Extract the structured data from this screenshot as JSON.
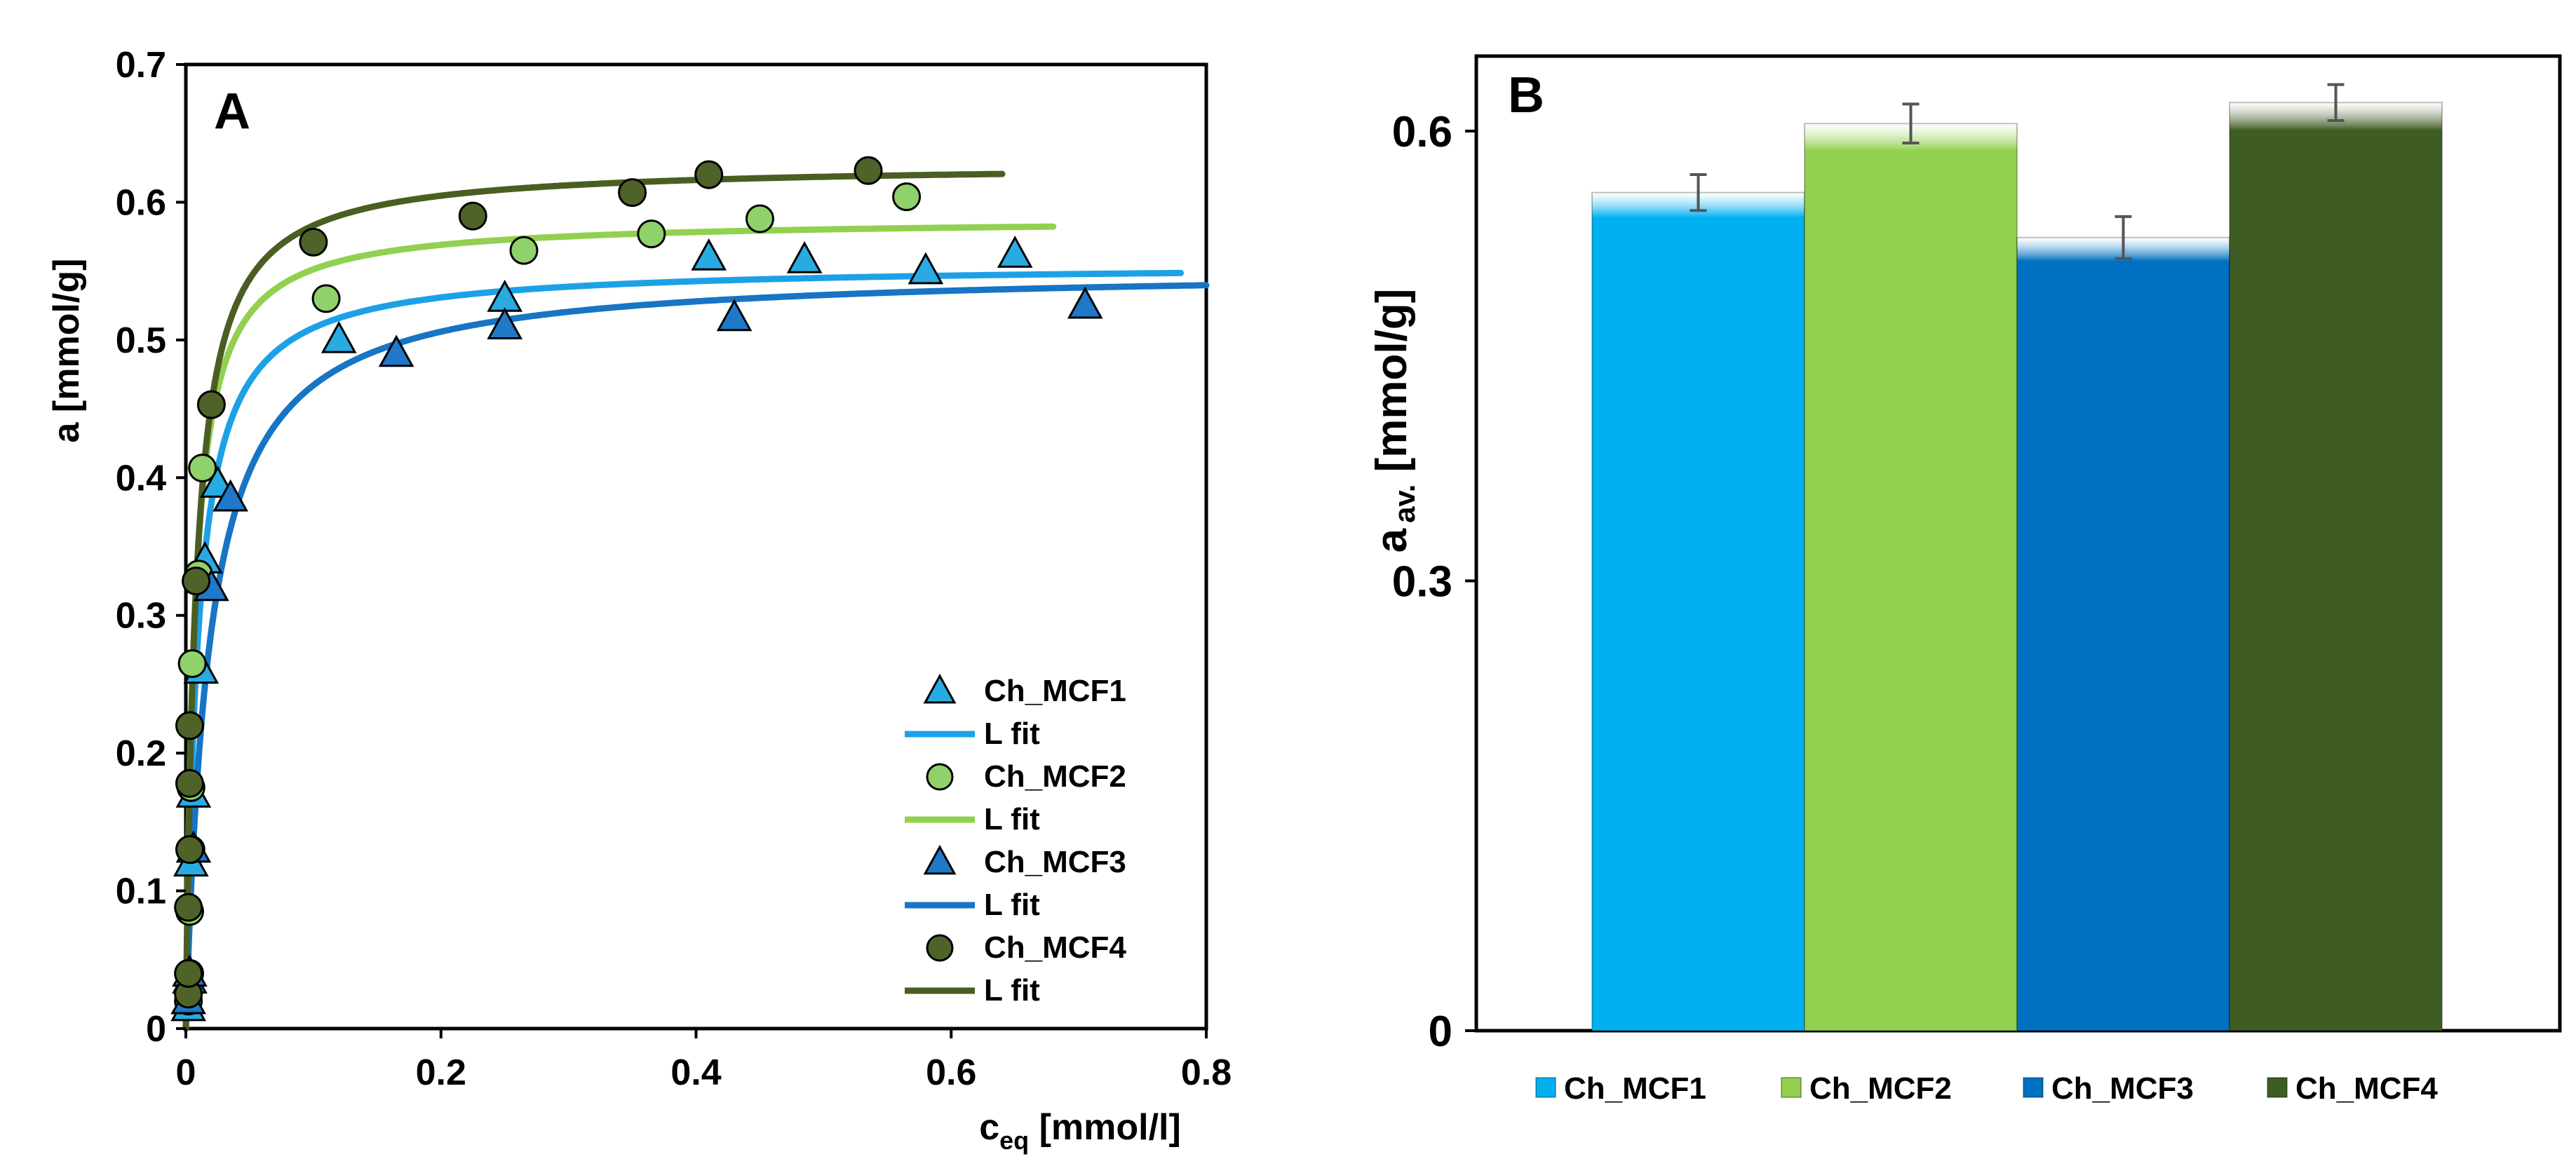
{
  "chart_data": [
    {
      "panel_label": "A",
      "type": "scatter",
      "xlabel_main": "c",
      "xlabel_sub": "eq",
      "xlabel_unit": " [mmol/l]",
      "ylabel": "a [mmol/g]",
      "xlim": [
        0,
        0.8
      ],
      "ylim": [
        0,
        0.7
      ],
      "xticks": [
        0,
        0.2,
        0.4,
        0.6,
        0.8
      ],
      "yticks": [
        0,
        0.1,
        0.2,
        0.3,
        0.4,
        0.5,
        0.6,
        0.7
      ],
      "xtick_labels": [
        "0",
        "0.2",
        "0.4",
        "0.6",
        "0.8"
      ],
      "ytick_labels": [
        "0",
        "0.1",
        "0.2",
        "0.3",
        "0.4",
        "0.5",
        "0.6",
        "0.7"
      ],
      "grid": false,
      "legend_position": "bottom-right",
      "series": [
        {
          "name": "Ch_MCF1",
          "marker": "triangle",
          "color": "#29ABE2",
          "fit_color": "#1DA1E6",
          "fit_name": "L fit",
          "points": [
            [
              0.002,
              0.015
            ],
            [
              0.003,
              0.035
            ],
            [
              0.004,
              0.12
            ],
            [
              0.006,
              0.17
            ],
            [
              0.012,
              0.26
            ],
            [
              0.015,
              0.34
            ],
            [
              0.025,
              0.395
            ],
            [
              0.12,
              0.5
            ],
            [
              0.25,
              0.53
            ],
            [
              0.41,
              0.56
            ],
            [
              0.485,
              0.558
            ],
            [
              0.58,
              0.55
            ],
            [
              0.65,
              0.562
            ]
          ],
          "fit": {
            "qmax": 0.555,
            "K": 110,
            "xmax": 0.78
          }
        },
        {
          "name": "Ch_MCF2",
          "marker": "circle",
          "color": "#8FD16A",
          "fit_color": "#92D050",
          "fit_name": "L fit",
          "points": [
            [
              0.002,
              0.02
            ],
            [
              0.003,
              0.04
            ],
            [
              0.003,
              0.085
            ],
            [
              0.004,
              0.13
            ],
            [
              0.004,
              0.175
            ],
            [
              0.005,
              0.265
            ],
            [
              0.01,
              0.33
            ],
            [
              0.013,
              0.407
            ],
            [
              0.11,
              0.53
            ],
            [
              0.265,
              0.565
            ],
            [
              0.365,
              0.577
            ],
            [
              0.45,
              0.588
            ],
            [
              0.565,
              0.604
            ]
          ],
          "fit": {
            "qmax": 0.588,
            "K": 150,
            "xmax": 0.68
          }
        },
        {
          "name": "Ch_MCF3",
          "marker": "triangle",
          "color": "#1F78C8",
          "fit_color": "#1874C4",
          "fit_name": "L fit",
          "points": [
            [
              0.002,
              0.02
            ],
            [
              0.003,
              0.04
            ],
            [
              0.006,
              0.13
            ],
            [
              0.02,
              0.32
            ],
            [
              0.035,
              0.385
            ],
            [
              0.165,
              0.49
            ],
            [
              0.25,
              0.51
            ],
            [
              0.43,
              0.516
            ],
            [
              0.705,
              0.525
            ]
          ],
          "fit": {
            "qmax": 0.552,
            "K": 55,
            "xmax": 0.8
          }
        },
        {
          "name": "Ch_MCF4",
          "marker": "circle",
          "color": "#4F6228",
          "fit_color": "#4A5E22",
          "fit_name": "L fit",
          "points": [
            [
              0.002,
              0.025
            ],
            [
              0.002,
              0.04
            ],
            [
              0.002,
              0.088
            ],
            [
              0.003,
              0.13
            ],
            [
              0.003,
              0.178
            ],
            [
              0.003,
              0.22
            ],
            [
              0.008,
              0.325
            ],
            [
              0.02,
              0.453
            ],
            [
              0.1,
              0.571
            ],
            [
              0.225,
              0.59
            ],
            [
              0.35,
              0.607
            ],
            [
              0.41,
              0.62
            ],
            [
              0.535,
              0.623
            ]
          ],
          "fit": {
            "qmax": 0.628,
            "K": 130,
            "xmax": 0.64
          }
        }
      ]
    },
    {
      "panel_label": "B",
      "type": "bar",
      "ylabel_main": "a",
      "ylabel_sub": "av.",
      "ylabel_unit": " [mmol/g]",
      "ylim": [
        0,
        0.65
      ],
      "yticks": [
        0,
        0.3,
        0.6
      ],
      "ytick_labels": [
        "0",
        "0.3",
        "0.6"
      ],
      "grid": false,
      "legend_position": "bottom",
      "categories": [
        "Ch_MCF1",
        "Ch_MCF2",
        "Ch_MCF3",
        "Ch_MCF4"
      ],
      "values": [
        0.559,
        0.605,
        0.529,
        0.619
      ],
      "errors": [
        0.012,
        0.013,
        0.014,
        0.012
      ],
      "colors": [
        "#00B0F0",
        "#92D050",
        "#0070C0",
        "#3E5C24"
      ]
    }
  ]
}
